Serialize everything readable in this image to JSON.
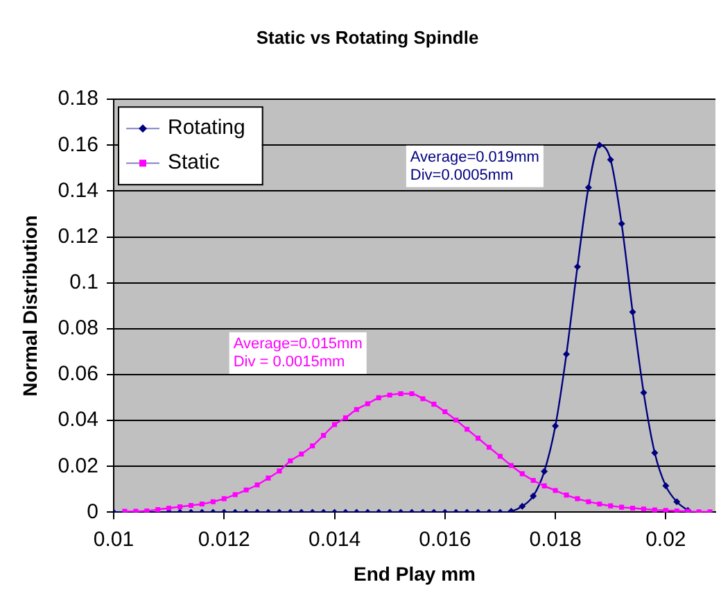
{
  "chart_data": {
    "type": "line",
    "title": "Static vs Rotating Spindle",
    "xlabel": "End Play mm",
    "ylabel": "Normal Distribution",
    "xlim": [
      0.01,
      0.0209
    ],
    "xticks": [
      0.01,
      0.012,
      0.014,
      0.016,
      0.018,
      0.02
    ],
    "ylim": [
      0,
      0.18
    ],
    "yticks": [
      0,
      0.02,
      0.04,
      0.06,
      0.08,
      0.1,
      0.12,
      0.14,
      0.16,
      0.18
    ],
    "grid": "y",
    "legend": "top left",
    "line_style": "solid",
    "series": [
      {
        "name": "Rotating",
        "color": "#000080",
        "marker": "diamond",
        "x": [
          0.01,
          0.0102,
          0.0104,
          0.0106,
          0.0108,
          0.011,
          0.0112,
          0.0114,
          0.0116,
          0.0118,
          0.012,
          0.0122,
          0.0124,
          0.0126,
          0.0128,
          0.013,
          0.0132,
          0.0134,
          0.0136,
          0.0138,
          0.014,
          0.0142,
          0.0144,
          0.0146,
          0.0148,
          0.015,
          0.0152,
          0.0154,
          0.0156,
          0.0158,
          0.016,
          0.0162,
          0.0164,
          0.0166,
          0.0168,
          0.017,
          0.0172,
          0.0174,
          0.0176,
          0.0178,
          0.018,
          0.0182,
          0.0184,
          0.0186,
          0.0188,
          0.019,
          0.0192,
          0.0194,
          0.0196,
          0.0198,
          0.02,
          0.0202,
          0.0204
        ],
        "values": [
          0,
          0,
          0,
          0,
          0,
          0,
          0,
          0,
          0,
          0,
          0,
          0,
          0,
          0,
          0,
          0,
          0,
          0,
          0,
          0,
          0,
          0,
          0,
          0,
          0,
          0,
          0,
          0,
          0,
          0,
          0,
          0,
          0,
          0,
          0,
          0,
          0.0004,
          0.0026,
          0.0071,
          0.0178,
          0.0376,
          0.0689,
          0.107,
          0.1416,
          0.16,
          0.1537,
          0.1258,
          0.0873,
          0.0521,
          0.0259,
          0.0115,
          0.0046,
          0.0008
        ]
      },
      {
        "name": "Static",
        "color": "#ff00ff",
        "marker": "square",
        "x": [
          0.0102,
          0.0104,
          0.0106,
          0.0108,
          0.011,
          0.0112,
          0.0114,
          0.0116,
          0.0118,
          0.012,
          0.0122,
          0.0124,
          0.0126,
          0.0128,
          0.013,
          0.0132,
          0.0134,
          0.0136,
          0.0138,
          0.014,
          0.0142,
          0.0144,
          0.0146,
          0.0148,
          0.015,
          0.0152,
          0.0154,
          0.0156,
          0.0158,
          0.016,
          0.0162,
          0.0164,
          0.0166,
          0.0168,
          0.017,
          0.0172,
          0.0174,
          0.0176,
          0.0178,
          0.018,
          0.0182,
          0.0184,
          0.0186,
          0.0188,
          0.019,
          0.0192,
          0.0194,
          0.0196,
          0.0198,
          0.02,
          0.0202,
          0.0204,
          0.0206,
          0.0208
        ],
        "values": [
          0.0004,
          0.0004,
          0.0006,
          0.0012,
          0.0018,
          0.0024,
          0.003,
          0.0036,
          0.0046,
          0.0059,
          0.0077,
          0.0097,
          0.0119,
          0.0149,
          0.018,
          0.0224,
          0.0254,
          0.0289,
          0.0335,
          0.0382,
          0.0412,
          0.0448,
          0.0473,
          0.0499,
          0.0511,
          0.0517,
          0.0517,
          0.0495,
          0.0471,
          0.0438,
          0.0402,
          0.0362,
          0.0323,
          0.0283,
          0.0244,
          0.0204,
          0.0168,
          0.0139,
          0.0115,
          0.0095,
          0.0075,
          0.0059,
          0.0046,
          0.0036,
          0.0028,
          0.0022,
          0.0018,
          0.0014,
          0.001,
          0.0008,
          0.0006,
          0.0004,
          0.0002,
          0.0002
        ]
      }
    ],
    "annotations": [
      "Average=0.019mm\nDiv=0.0005mm",
      "Average=0.015mm\nDiv = 0.0015mm"
    ]
  }
}
